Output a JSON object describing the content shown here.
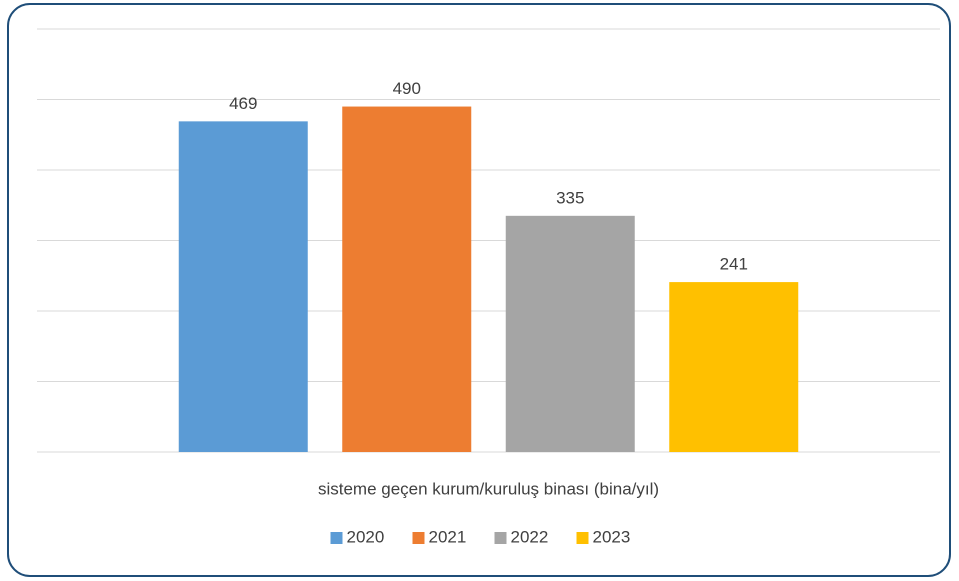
{
  "chart_data": {
    "type": "bar",
    "categories": [
      "sisteme geçen kurum/kuruluş binası (bina/yıl)"
    ],
    "series": [
      {
        "name": "2020",
        "color": "#5b9bd5",
        "values": [
          469
        ]
      },
      {
        "name": "2021",
        "color": "#ed7d31",
        "values": [
          490
        ]
      },
      {
        "name": "2022",
        "color": "#a5a5a5",
        "values": [
          335
        ]
      },
      {
        "name": "2023",
        "color": "#ffc000",
        "values": [
          241
        ]
      }
    ],
    "ylim": [
      0,
      600
    ],
    "yticks": [
      0,
      100,
      200,
      300,
      400,
      500,
      600
    ],
    "grid": true,
    "legend": "bottom"
  }
}
